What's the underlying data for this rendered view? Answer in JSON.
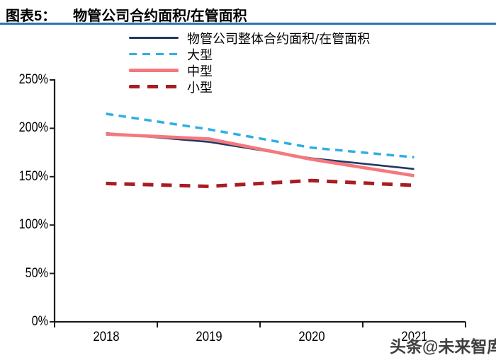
{
  "header": {
    "figure_label": "图表5：",
    "title": "物管公司合约面积/在管面积",
    "rule_color": "#2E74B5"
  },
  "watermark": "头条@未来智库",
  "chart_data": {
    "type": "line",
    "title": "物管公司合约面积/在管面积",
    "categories": [
      "2018",
      "2019",
      "2020",
      "2021"
    ],
    "series": [
      {
        "name": "物管公司整体合约面积/在管面积",
        "values": [
          195,
          186,
          169,
          158
        ],
        "color": "#1F3864",
        "style": "solid",
        "width": 2.6
      },
      {
        "name": "大型",
        "values": [
          215,
          199,
          180,
          170
        ],
        "color": "#2FAFE3",
        "style": "dashed",
        "width": 3.5
      },
      {
        "name": "中型",
        "values": [
          194,
          189,
          168,
          151
        ],
        "color": "#F4787D",
        "style": "solid",
        "width": 4.6
      },
      {
        "name": "小型",
        "values": [
          143,
          140,
          146,
          141
        ],
        "color": "#A81D22",
        "style": "dashed",
        "width": 5
      }
    ],
    "xlabel": "",
    "ylabel": "",
    "unit": "percent",
    "ylim": [
      0,
      250
    ],
    "y_ticks": [
      "0%",
      "50%",
      "100%",
      "150%",
      "200%",
      "250%"
    ],
    "legend_position": "top",
    "grid": false,
    "axis_color": "#1a1a1a"
  }
}
